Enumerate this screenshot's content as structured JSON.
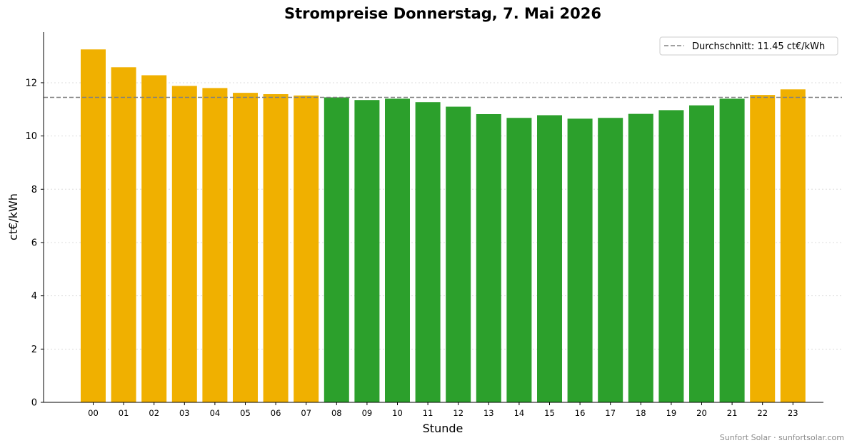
{
  "chart_data": {
    "type": "bar",
    "title": "Strompreise Donnerstag, 7. Mai 2026",
    "xlabel": "Stunde",
    "ylabel": "ct€/kWh",
    "ylim": [
      0,
      13.9
    ],
    "yticks": [
      0,
      2,
      4,
      6,
      8,
      10,
      12
    ],
    "categories": [
      "00",
      "01",
      "02",
      "03",
      "04",
      "05",
      "06",
      "07",
      "08",
      "09",
      "10",
      "11",
      "12",
      "13",
      "14",
      "15",
      "16",
      "17",
      "18",
      "19",
      "20",
      "21",
      "22",
      "23"
    ],
    "values": [
      13.25,
      12.58,
      12.28,
      11.88,
      11.8,
      11.62,
      11.57,
      11.52,
      11.45,
      11.35,
      11.4,
      11.27,
      11.1,
      10.82,
      10.68,
      10.78,
      10.65,
      10.68,
      10.83,
      10.97,
      11.15,
      11.4,
      11.54,
      11.75
    ],
    "average": 11.45,
    "legend": {
      "entries": [
        "Durchschnitt: 11.45 ct€/kWh"
      ],
      "placement": "top-right"
    },
    "colors": {
      "above_average": "#f0b000",
      "below_average": "#2ca02c",
      "average_line": "#808080",
      "grid": "#dddddd"
    },
    "grid": {
      "y": true,
      "style": "dotted"
    },
    "credit": "Sunfort Solar · sunfortsolar.com"
  }
}
